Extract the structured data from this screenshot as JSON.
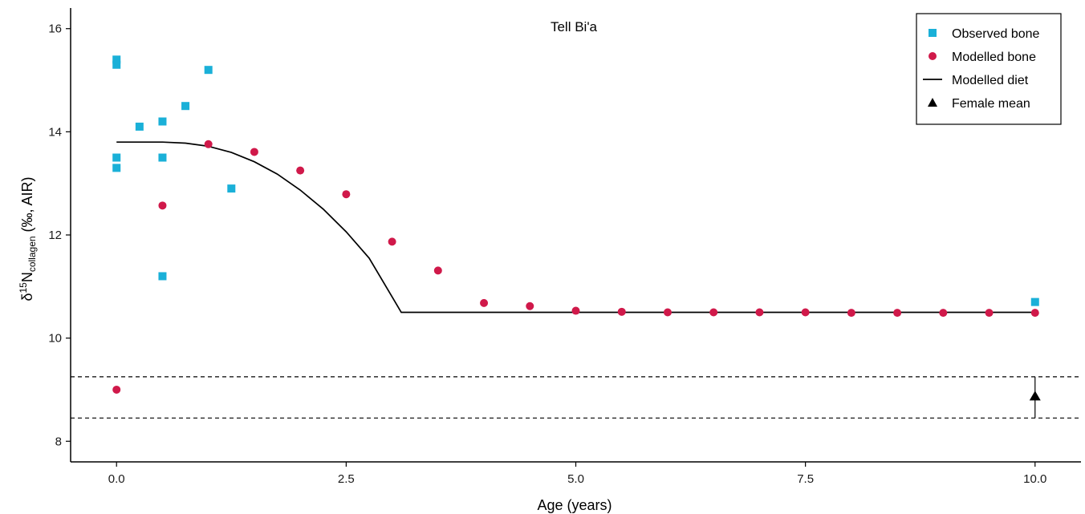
{
  "chart_data": {
    "type": "scatter",
    "title": "Tell Bi'a",
    "xlabel": "Age (years)",
    "ylabel": {
      "prefix": "δ",
      "sup": "15",
      "element": "N",
      "sub": "collagen",
      "suffix": " (‰, AIR)"
    },
    "xlim": [
      -0.5,
      10.5
    ],
    "ylim": [
      7.6,
      16.4
    ],
    "xticks": [
      0,
      2.5,
      5,
      7.5,
      10
    ],
    "xtick_labels": [
      "0.0",
      "2.5",
      "5.0",
      "7.5",
      "10.0"
    ],
    "yticks": [
      8,
      10,
      12,
      14,
      16
    ],
    "ytick_labels": [
      "8",
      "10",
      "12",
      "14",
      "16"
    ],
    "grid": false,
    "legend_position": "top-right",
    "colors": {
      "observed": "#1ab0d8",
      "modelled": "#d0194a",
      "line": "#000000"
    },
    "series": [
      {
        "name": "Observed bone",
        "kind": "square",
        "points": [
          [
            0,
            15.4
          ],
          [
            0,
            15.3
          ],
          [
            0,
            13.5
          ],
          [
            0,
            13.3
          ],
          [
            0.25,
            14.1
          ],
          [
            0.5,
            14.2
          ],
          [
            0.5,
            13.5
          ],
          [
            0.5,
            11.2
          ],
          [
            0.75,
            14.5
          ],
          [
            1.0,
            15.2
          ],
          [
            1.25,
            12.9
          ],
          [
            10.0,
            10.7
          ]
        ]
      },
      {
        "name": "Modelled bone",
        "kind": "circle",
        "points": [
          [
            0,
            9.0
          ],
          [
            0.5,
            12.57
          ],
          [
            1.0,
            13.76
          ],
          [
            1.5,
            13.61
          ],
          [
            2.0,
            13.25
          ],
          [
            2.5,
            12.79
          ],
          [
            3.0,
            11.87
          ],
          [
            3.5,
            11.31
          ],
          [
            4.0,
            10.68
          ],
          [
            4.5,
            10.62
          ],
          [
            5.0,
            10.53
          ],
          [
            5.5,
            10.51
          ],
          [
            6.0,
            10.5
          ],
          [
            6.5,
            10.5
          ],
          [
            7.0,
            10.5
          ],
          [
            7.5,
            10.5
          ],
          [
            8.0,
            10.49
          ],
          [
            8.5,
            10.49
          ],
          [
            9.0,
            10.49
          ],
          [
            9.5,
            10.49
          ],
          [
            10.0,
            10.49
          ]
        ]
      },
      {
        "name": "Modelled diet",
        "kind": "line",
        "points": [
          [
            0,
            13.8
          ],
          [
            0.5,
            13.8
          ],
          [
            0.75,
            13.78
          ],
          [
            1.0,
            13.72
          ],
          [
            1.25,
            13.6
          ],
          [
            1.5,
            13.42
          ],
          [
            1.75,
            13.18
          ],
          [
            2.0,
            12.87
          ],
          [
            2.25,
            12.5
          ],
          [
            2.5,
            12.06
          ],
          [
            2.75,
            11.55
          ],
          [
            3.0,
            10.8
          ],
          [
            3.1,
            10.5
          ],
          [
            10.0,
            10.5
          ]
        ]
      },
      {
        "name": "Female mean",
        "kind": "triangle",
        "points": [
          [
            10.0,
            8.87
          ]
        ],
        "error_range": [
          8.45,
          9.25
        ]
      }
    ],
    "reference_lines": [
      9.25,
      8.45
    ]
  }
}
